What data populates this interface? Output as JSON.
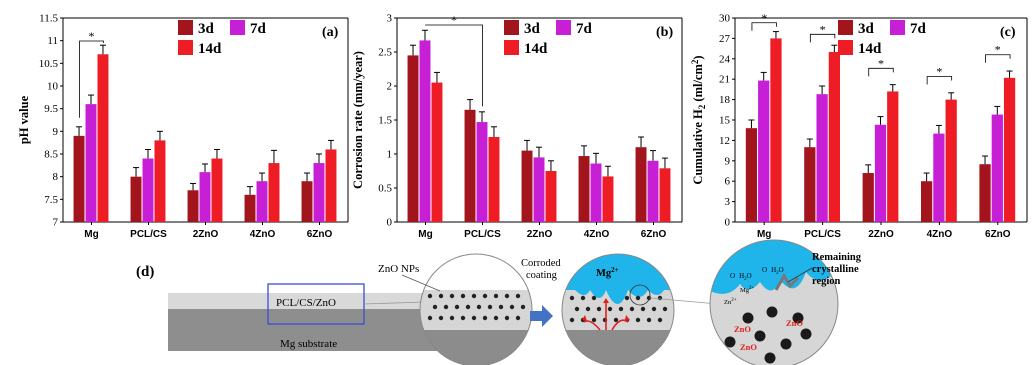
{
  "colors": {
    "d3": "#a3151c",
    "d7": "#c71fd6",
    "d14": "#ee1c25",
    "axis": "#000000",
    "coating_light": "#d6d6d6",
    "substrate": "#8c8c8c",
    "fluid": "#1fb5ea",
    "particle": "#2a2a2a",
    "arrow": "#4472c4",
    "box": "#3b4fcf",
    "mg_arrow": "#e0201b"
  },
  "chart_data": [
    {
      "type": "bar",
      "panel": "(a)",
      "ylabel": "pH value",
      "ylim": [
        7,
        11.5
      ],
      "yticks": [
        "7",
        "7.5",
        "8",
        "8.5",
        "9",
        "9.5",
        "10",
        "10.5",
        "11",
        "11.5"
      ],
      "categories": [
        "Mg",
        "PCL/CS",
        "2ZnO",
        "4ZnO",
        "6ZnO"
      ],
      "series": [
        {
          "name": "3d",
          "values": [
            8.9,
            8.0,
            7.7,
            7.6,
            7.9
          ],
          "errors": [
            0.2,
            0.2,
            0.15,
            0.18,
            0.18
          ]
        },
        {
          "name": "7d",
          "values": [
            9.6,
            8.4,
            8.1,
            7.9,
            8.3
          ],
          "errors": [
            0.2,
            0.2,
            0.18,
            0.18,
            0.2
          ]
        },
        {
          "name": "14d",
          "values": [
            10.7,
            8.8,
            8.4,
            8.3,
            8.6
          ],
          "errors": [
            0.2,
            0.2,
            0.2,
            0.28,
            0.2
          ]
        }
      ],
      "significance": [
        "*"
      ],
      "legend": "top-right"
    },
    {
      "type": "bar",
      "panel": "(b)",
      "ylabel": "Corrosion rate (mm/year)",
      "ylim": [
        0,
        3
      ],
      "yticks": [
        "0",
        "0.5",
        "1",
        "1.5",
        "2",
        "2.5",
        "3"
      ],
      "categories": [
        "Mg",
        "PCL/CS",
        "2ZnO",
        "4ZnO",
        "6ZnO"
      ],
      "series": [
        {
          "name": "3d",
          "values": [
            2.45,
            1.65,
            1.05,
            0.97,
            1.1
          ],
          "errors": [
            0.15,
            0.15,
            0.15,
            0.15,
            0.15
          ]
        },
        {
          "name": "7d",
          "values": [
            2.67,
            1.47,
            0.95,
            0.86,
            0.9
          ],
          "errors": [
            0.15,
            0.15,
            0.15,
            0.15,
            0.15
          ]
        },
        {
          "name": "14d",
          "values": [
            2.05,
            1.25,
            0.75,
            0.67,
            0.79
          ],
          "errors": [
            0.15,
            0.15,
            0.15,
            0.15,
            0.15
          ]
        }
      ],
      "significance": [
        "*"
      ],
      "legend": "top-right"
    },
    {
      "type": "bar",
      "panel": "(c)",
      "ylabel": "Cumulative H2 (ml/cm2)",
      "ylabel_parts": [
        "Cumulative H",
        "2",
        " (ml/cm",
        "2",
        ")"
      ],
      "ylim": [
        0,
        30
      ],
      "yticks": [
        "0",
        "3",
        "6",
        "9",
        "12",
        "15",
        "18",
        "21",
        "24",
        "27",
        "30"
      ],
      "categories": [
        "Mg",
        "PCL/CS",
        "2ZnO",
        "4ZnO",
        "6ZnO"
      ],
      "series": [
        {
          "name": "3d",
          "values": [
            13.8,
            11.0,
            7.2,
            6.0,
            8.5
          ],
          "errors": [
            1.2,
            1.2,
            1.2,
            1.2,
            1.2
          ]
        },
        {
          "name": "7d",
          "values": [
            20.8,
            18.8,
            14.3,
            13.0,
            15.8
          ],
          "errors": [
            1.2,
            1.2,
            1.2,
            1.2,
            1.2
          ]
        },
        {
          "name": "14d",
          "values": [
            27.0,
            25.0,
            19.2,
            18.0,
            21.2
          ],
          "errors": [
            1.0,
            1.0,
            1.0,
            1.0,
            1.0
          ]
        }
      ],
      "significance": [
        "*",
        "*",
        "*",
        "*",
        "*"
      ],
      "legend": "top-right"
    }
  ],
  "schematic": {
    "panel": "(d)",
    "coating_label": "PCL/CS/ZnO",
    "substrate_label": "Mg substrate",
    "zno_nps_label": "ZnO NPs",
    "corroded_label_1": "Corroded",
    "corroded_label_2": "coating",
    "mg_ion": "Mg",
    "mg_ion_sup": "2+",
    "remaining_1": "Remaining",
    "remaining_2": "crystalline",
    "remaining_3": "region",
    "zno_tags": [
      "ZnO",
      "ZnO",
      "ZnO"
    ],
    "small_labels": [
      "O",
      "H",
      "2",
      "O",
      "O",
      "H",
      "2",
      "O",
      "Mg",
      "2+",
      "Zn",
      "2+"
    ]
  }
}
